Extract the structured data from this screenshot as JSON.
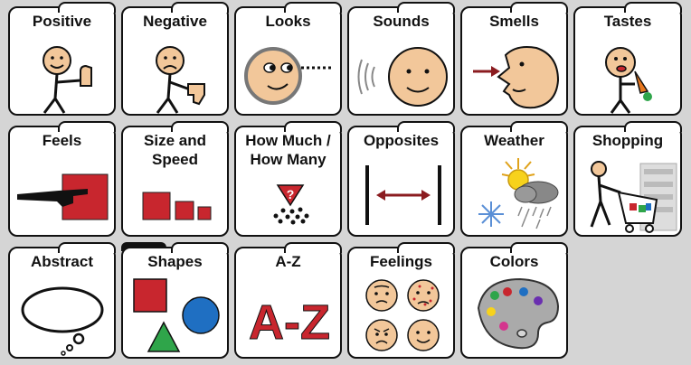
{
  "categories": [
    {
      "label": "Positive",
      "icon": "thumbs-up-person-icon"
    },
    {
      "label": "Negative",
      "icon": "thumbs-down-person-icon"
    },
    {
      "label": "Looks",
      "icon": "face-looking-icon"
    },
    {
      "label": "Sounds",
      "icon": "face-listening-icon"
    },
    {
      "label": "Smells",
      "icon": "nose-smelling-icon"
    },
    {
      "label": "Tastes",
      "icon": "person-eating-carrot-icon"
    },
    {
      "label": "Feels",
      "icon": "hand-touching-icon"
    },
    {
      "label": "Size and\nSpeed",
      "icon": "size-squares-icon"
    },
    {
      "label": "How Much /\nHow Many",
      "icon": "quantity-question-icon"
    },
    {
      "label": "Opposites",
      "icon": "opposite-arrows-icon"
    },
    {
      "label": "Weather",
      "icon": "weather-icon"
    },
    {
      "label": "Shopping",
      "icon": "shopping-cart-icon"
    },
    {
      "label": "Abstract",
      "icon": "thought-bubble-icon"
    },
    {
      "label": "Shapes",
      "icon": "shapes-icon"
    },
    {
      "label": "A-Z",
      "icon": "alphabet-icon",
      "art_text": "A-Z"
    },
    {
      "label": "Feelings",
      "icon": "feeling-faces-icon"
    },
    {
      "label": "Colors",
      "icon": "paint-palette-icon"
    }
  ],
  "colors": {
    "skin": "#f2c79a",
    "red": "#c8262e",
    "blue": "#1f6fc2",
    "green": "#2fa54a",
    "yellow": "#f7d21c",
    "background": "#d5d5d5"
  }
}
